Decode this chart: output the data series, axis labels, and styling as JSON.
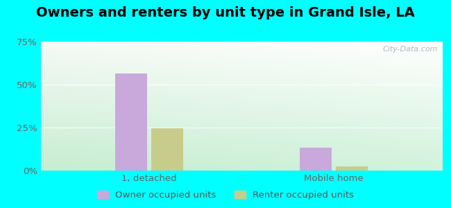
{
  "title": "Owners and renters by unit type in Grand Isle, LA",
  "categories": [
    "1, detached",
    "Mobile home"
  ],
  "owner_values": [
    56.5,
    13.5
  ],
  "renter_values": [
    24.5,
    2.5
  ],
  "owner_color": "#c9a8dc",
  "renter_color": "#c8cc8a",
  "bar_width": 0.08,
  "group_centers": [
    0.27,
    0.73
  ],
  "ylim": [
    0,
    75
  ],
  "yticks": [
    0,
    25,
    50,
    75
  ],
  "ytick_labels": [
    "0%",
    "25%",
    "50%",
    "75%"
  ],
  "outer_bg": "#00ffff",
  "legend_labels": [
    "Owner occupied units",
    "Renter occupied units"
  ],
  "watermark": "City-Data.com",
  "title_fontsize": 14,
  "tick_fontsize": 9.5,
  "legend_fontsize": 9.5,
  "bg_colors_top": "#e8f5e8",
  "bg_colors_bottom": "#c8e8d0",
  "bg_right": "#dff0f8"
}
